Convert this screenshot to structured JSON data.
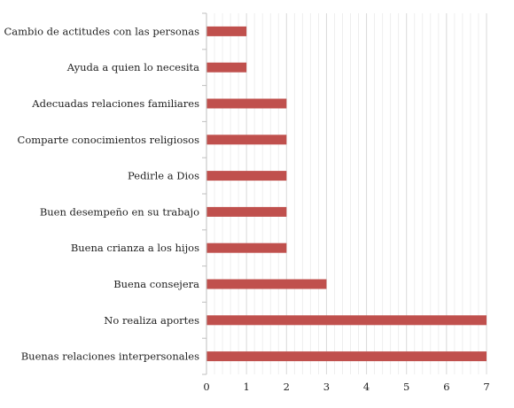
{
  "chart_data": {
    "type": "bar",
    "orientation": "horizontal",
    "categories": [
      "Cambio de actitudes con las personas",
      "Ayuda a quien lo necesita",
      "Adecuadas relaciones familiares",
      "Comparte conocimientos religiosos",
      "Pedirle a Dios",
      "Buen desempeño en su trabajo",
      "Buena crianza a los hijos",
      "Buena consejera",
      "No realiza aportes",
      "Buenas relaciones interpersonales"
    ],
    "values": [
      1,
      1,
      2,
      2,
      2,
      2,
      2,
      3,
      7,
      7
    ],
    "xlim": [
      0,
      7
    ],
    "xticks": [
      "0",
      "1",
      "2",
      "3",
      "4",
      "5",
      "6",
      "7"
    ],
    "minor_gridlines": true,
    "bar_color": "#C0504D",
    "grid_color": "#D9D9D9",
    "title": "",
    "xlabel": "",
    "ylabel": ""
  }
}
